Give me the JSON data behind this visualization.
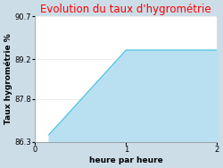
{
  "title": "Evolution du taux d'hygrométrie",
  "title_color": "#ff0000",
  "xlabel": "heure par heure",
  "ylabel": "Taux hygrométrie %",
  "x_data": [
    0.15,
    0.15,
    1.0,
    2.0
  ],
  "y_data": [
    86.55,
    86.55,
    89.52,
    89.52
  ],
  "fill_color": "#b8e0f0",
  "fill_alpha": 1.0,
  "line_color": "#40c0e0",
  "line_width": 0.8,
  "xlim": [
    0,
    2
  ],
  "ylim": [
    86.3,
    90.7
  ],
  "yticks": [
    86.3,
    87.8,
    89.2,
    90.7
  ],
  "xticks": [
    0,
    1,
    2
  ],
  "bg_color": "#ccdde8",
  "plot_bg_color": "#ffffff",
  "title_fontsize": 8.5,
  "label_fontsize": 6.5,
  "tick_fontsize": 6.0
}
